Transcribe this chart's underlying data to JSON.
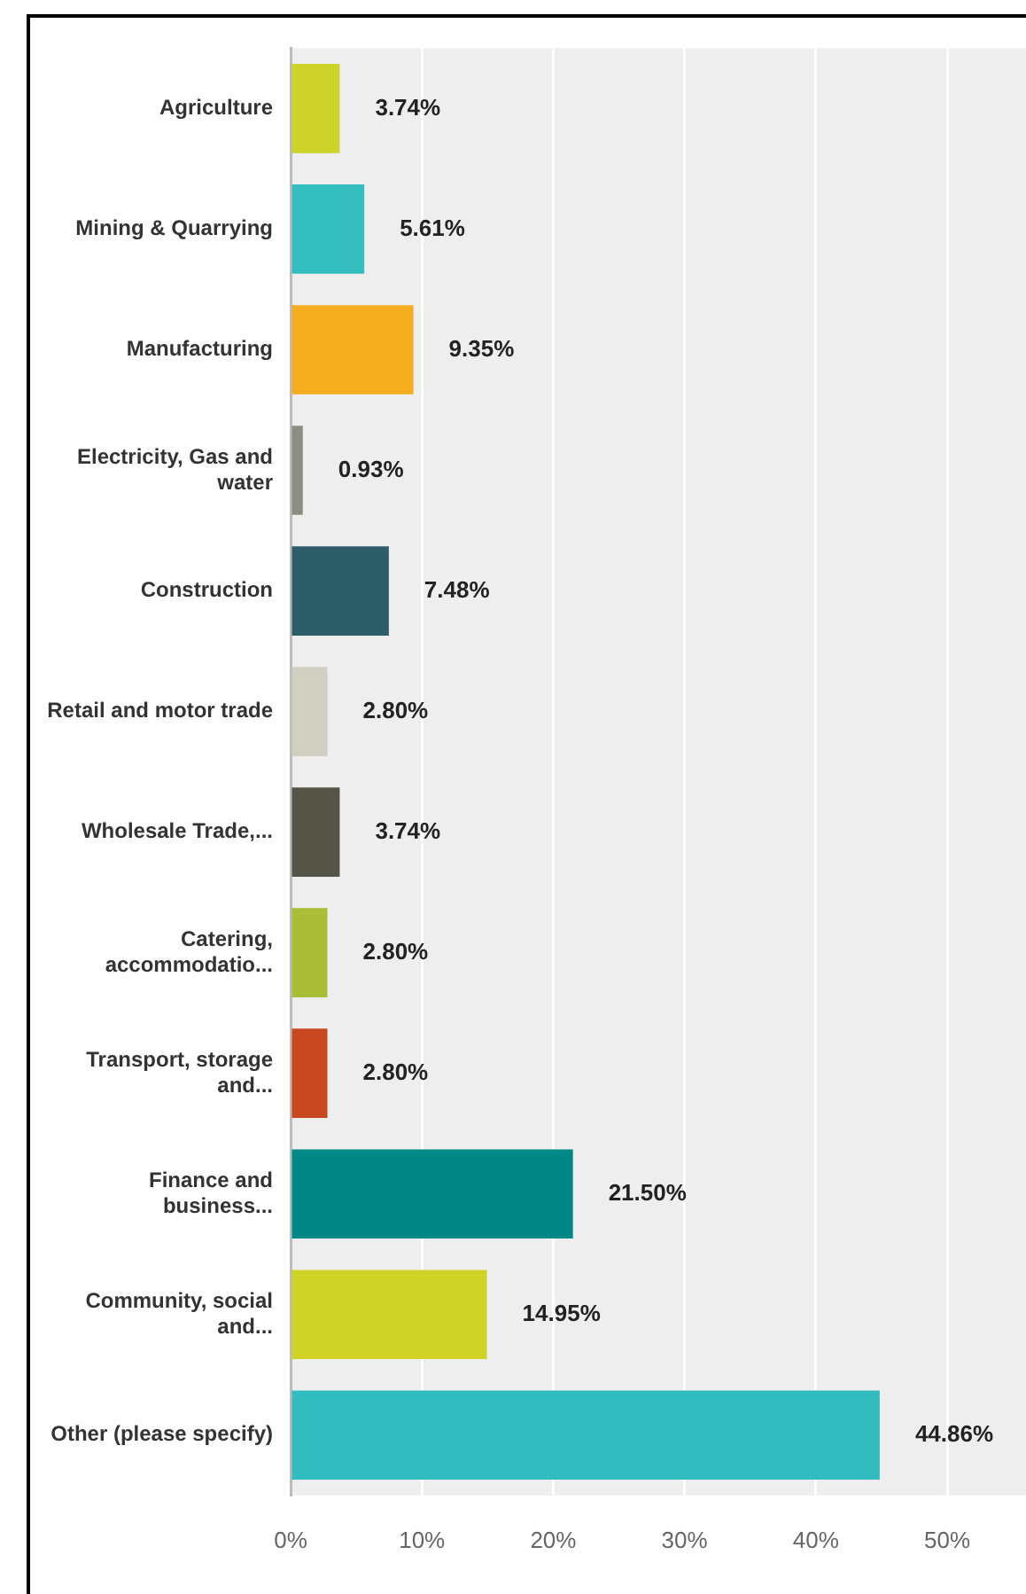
{
  "chart_data": {
    "type": "bar",
    "orientation": "horizontal",
    "categories": [
      "Agriculture",
      "Mining & Quarrying",
      "Manufacturing",
      "Electricity, Gas and water",
      "Construction",
      "Retail and motor trade",
      "Wholesale Trade,...",
      "Catering, accommodatio...",
      "Transport, storage and...",
      "Finance and business...",
      "Community, social and...",
      "Other (please specify)"
    ],
    "values": [
      3.74,
      5.61,
      9.35,
      0.93,
      7.48,
      2.8,
      3.74,
      2.8,
      2.8,
      21.5,
      14.95,
      44.86
    ],
    "value_labels": [
      "3.74%",
      "5.61%",
      "9.35%",
      "0.93%",
      "7.48%",
      "2.80%",
      "3.74%",
      "2.80%",
      "2.80%",
      "21.50%",
      "14.95%",
      "44.86%"
    ],
    "colors": [
      "#cdd329",
      "#33bdbf",
      "#f5ac1e",
      "#8e8e80",
      "#2c5e6a",
      "#d0cfc0",
      "#545447",
      "#a9be36",
      "#c8471e",
      "#008887",
      "#ced326",
      "#33bcbf"
    ],
    "xlim": [
      0,
      56
    ],
    "xticks": [
      {
        "value": 0,
        "label": "0%"
      },
      {
        "value": 10,
        "label": "10%"
      },
      {
        "value": 20,
        "label": "20%"
      },
      {
        "value": 30,
        "label": "30%"
      },
      {
        "value": 40,
        "label": "40%"
      },
      {
        "value": 50,
        "label": "50%"
      }
    ],
    "grid": "x",
    "legend": false
  }
}
